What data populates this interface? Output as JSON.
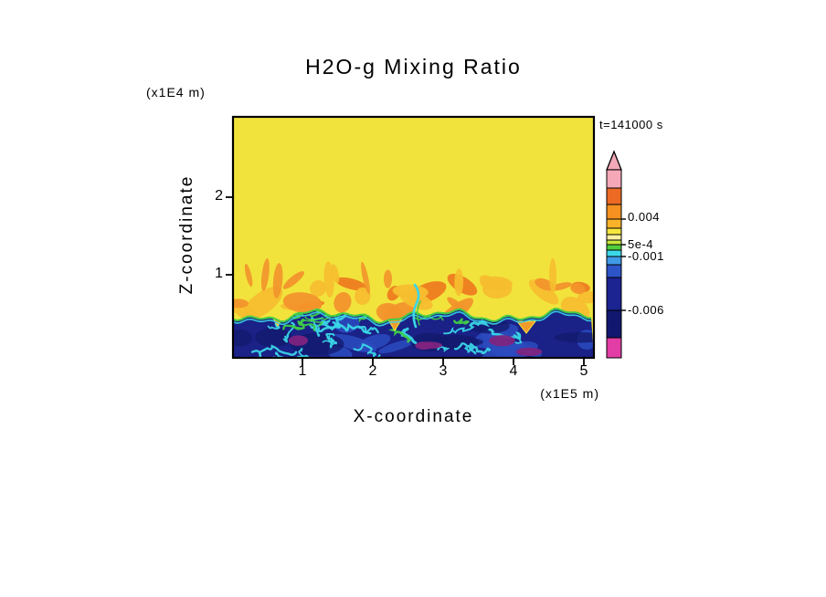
{
  "figure": {
    "background": "#FFFFFF",
    "text_color": "#000000",
    "frame_color": "#000000"
  },
  "chart_data": {
    "type": "heatmap",
    "title": "H2O-g Mixing Ratio",
    "time_label": "t=141000 s",
    "xlabel": "X-coordinate",
    "x_units": "(x1E5 m)",
    "ylabel": "Z-coordinate",
    "y_units": "(x1E4 m)",
    "x_ticks": [
      "1",
      "2",
      "3",
      "4",
      "5"
    ],
    "y_ticks": [
      "2",
      "1"
    ],
    "xlim_x1E5_m": [
      0,
      5.1
    ],
    "zlim_x1E4_m": [
      0,
      3.1
    ],
    "grid": false,
    "legend_position": "colorbar-right",
    "field_description": "2D vertical cross-section of H2O gas mixing ratio at t=141000 s: uniform yellow upper layer (~0.001 to 0.002) above z~1.1e4 m; turbulent band of orange plumes (~0.002 to 0.004) between z~0.55e4 and 1.1e4 m; dark blue boundary layer (~-0.002 to -0.006) below z~0.55e4 m laced with cyan/green filaments, a green fringe along the interface, isolated orange updraft cores and small magenta minima near the surface",
    "layers": [
      {
        "z_range_x1E4_m": [
          1.1,
          3.1
        ],
        "value": "~0.0015",
        "color": "#F2E33C",
        "description": "uniform yellow free atmosphere"
      },
      {
        "z_range_x1E4_m": [
          0.55,
          1.1
        ],
        "value": "~0.002 to 0.004",
        "color": "#F2932B",
        "description": "turbulent orange plume band in yellow background"
      },
      {
        "z_range_x1E4_m": [
          0.0,
          0.55
        ],
        "value": "~-0.002 to -0.006",
        "color": "#1A2187",
        "description": "dark blue mixed layer with cyan/green filaments, magenta minima, sparse orange cores"
      }
    ],
    "palette": {
      "upper": "#F2E33C",
      "plume_light": "#F6BE2F",
      "plume": "#F2932B",
      "plume_deep": "#ED7C1F",
      "lower": "#1A2187",
      "lower_dark": "#131A6E",
      "lower_blue": "#2B4BC0",
      "cyan": "#3AD6E6",
      "green": "#3FCE48",
      "purple": "#7E2480",
      "core_orange": "#F29B2A",
      "core_yellow": "#F2E33C"
    },
    "colorbar": {
      "labels": [
        "0.004",
        "5e-4",
        "-0.001",
        "-0.006"
      ],
      "label_values": [
        0.004,
        0.0005,
        -0.001,
        -0.006
      ],
      "tip_color": "#F4A8B8",
      "segments": [
        {
          "color": "#F4A8B8",
          "h": 20
        },
        {
          "color": "#ED6A25",
          "h": 18
        },
        {
          "color": "#F59120",
          "h": 16
        },
        {
          "color": "#F9B32A",
          "h": 10
        },
        {
          "color": "#F5E63C",
          "h": 7
        },
        {
          "color": "#FAF0A0",
          "h": 6
        },
        {
          "color": "#C9E63C",
          "h": 5
        },
        {
          "color": "#52CE3C",
          "h": 6
        },
        {
          "color": "#3BD8E8",
          "h": 7
        },
        {
          "color": "#3F9BE8",
          "h": 9
        },
        {
          "color": "#2D55C8",
          "h": 14
        },
        {
          "color": "#1B2490",
          "h": 36
        },
        {
          "color": "#12176E",
          "h": 30
        },
        {
          "color": "#E23DA5",
          "h": 22
        }
      ]
    }
  }
}
